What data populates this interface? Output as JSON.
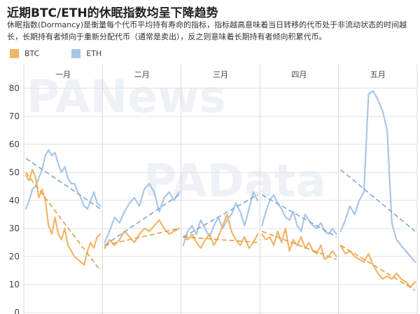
{
  "header": {
    "title": "近期BTC/ETH的休眠指数均呈下降趋势",
    "subtitle": "休眠指数(Dormancy)是衡量每个代币平均持有寿命的指标，指标越高意味着当日转移的代币处于非流动状态的时间越长，长期持有者倾向于重新分配代币（通常是卖出），反之则意味着长期持有者倾向积累代币。"
  },
  "watermarks": [
    "PANews",
    "PAData"
  ],
  "chart_data": {
    "type": "line",
    "grid": true,
    "legend_position": "top-left",
    "ylim": [
      0,
      82
    ],
    "y_ticks": [
      0,
      10,
      20,
      30,
      40,
      50,
      60,
      70,
      80
    ],
    "panels": [
      {
        "label": "一月",
        "series": [
          {
            "name": "BTC",
            "color": "#f4b467",
            "values": [
              49,
              47,
              51,
              48,
              41,
              44,
              40,
              31,
              28,
              34,
              28,
              26,
              30,
              24,
              22,
              20,
              19,
              18,
              17,
              22,
              25,
              23,
              27,
              28
            ]
          },
          {
            "name": "ETH",
            "color": "#a9c6e6",
            "values": [
              37,
              40,
              44,
              45,
              48,
              51,
              56,
              58,
              56,
              57,
              53,
              50,
              52,
              48,
              46,
              46,
              43,
              41,
              38,
              37,
              40,
              43,
              39,
              38
            ]
          }
        ],
        "trends": [
          {
            "series": "BTC",
            "start": 50,
            "end": 15
          },
          {
            "series": "ETH",
            "start": 55,
            "end": 37
          }
        ]
      },
      {
        "label": "二月",
        "series": [
          {
            "name": "BTC",
            "color": "#f4b467",
            "values": [
              23,
              26,
              24,
              26,
              29,
              27,
              25,
              28,
              30,
              29,
              31,
              33,
              30,
              28,
              29,
              30
            ]
          },
          {
            "name": "ETH",
            "color": "#a9c6e6",
            "values": [
              25,
              29,
              34,
              32,
              36,
              39,
              41,
              38,
              44,
              46,
              43,
              36,
              41,
              43,
              40,
              43
            ]
          }
        ],
        "trends": [
          {
            "series": "BTC",
            "start": 24,
            "end": 30
          },
          {
            "series": "ETH",
            "start": 24,
            "end": 42
          }
        ]
      },
      {
        "label": "三月",
        "series": [
          {
            "name": "BTC",
            "color": "#f4b467",
            "values": [
              27,
              26,
              28,
              25,
              23,
              26,
              28,
              24,
              27,
              31,
              35,
              29,
              26,
              24,
              27,
              23,
              25,
              28
            ]
          },
          {
            "name": "ETH",
            "color": "#a9c6e6",
            "values": [
              24,
              29,
              31,
              28,
              33,
              30,
              27,
              31,
              34,
              30,
              33,
              35,
              39,
              36,
              31,
              37,
              43,
              40
            ]
          }
        ],
        "trends": [
          {
            "series": "BTC",
            "start": 27,
            "end": 25
          },
          {
            "series": "ETH",
            "start": 27,
            "end": 42
          }
        ]
      },
      {
        "label": "四月",
        "series": [
          {
            "name": "BTC",
            "color": "#f4b467",
            "values": [
              28,
              26,
              27,
              24,
              29,
              25,
              30,
              22,
              26,
              24,
              27,
              23,
              25,
              22,
              21,
              24,
              19,
              20,
              22,
              20
            ]
          },
          {
            "name": "ETH",
            "color": "#a9c6e6",
            "values": [
              31,
              36,
              40,
              42,
              39,
              37,
              34,
              33,
              36,
              31,
              29,
              35,
              33,
              31,
              30,
              32,
              29,
              28,
              30,
              28
            ]
          }
        ],
        "trends": [
          {
            "series": "BTC",
            "start": 29,
            "end": 19
          },
          {
            "series": "ETH",
            "start": 42,
            "end": 27
          }
        ]
      },
      {
        "label": "五月",
        "series": [
          {
            "name": "BTC",
            "color": "#f4b467",
            "values": [
              24,
              21,
              22,
              20,
              19,
              18,
              21,
              17,
              14,
              12,
              13,
              12,
              14,
              12,
              11,
              9,
              11
            ]
          },
          {
            "name": "ETH",
            "color": "#a9c6e6",
            "values": [
              29,
              33,
              38,
              35,
              40,
              43,
              78,
              79,
              76,
              72,
              65,
              32,
              26,
              24,
              22,
              20,
              18
            ]
          }
        ],
        "trends": [
          {
            "series": "BTC",
            "start": 24,
            "end": 8
          },
          {
            "series": "ETH",
            "start": 51,
            "end": 29
          }
        ]
      }
    ]
  }
}
